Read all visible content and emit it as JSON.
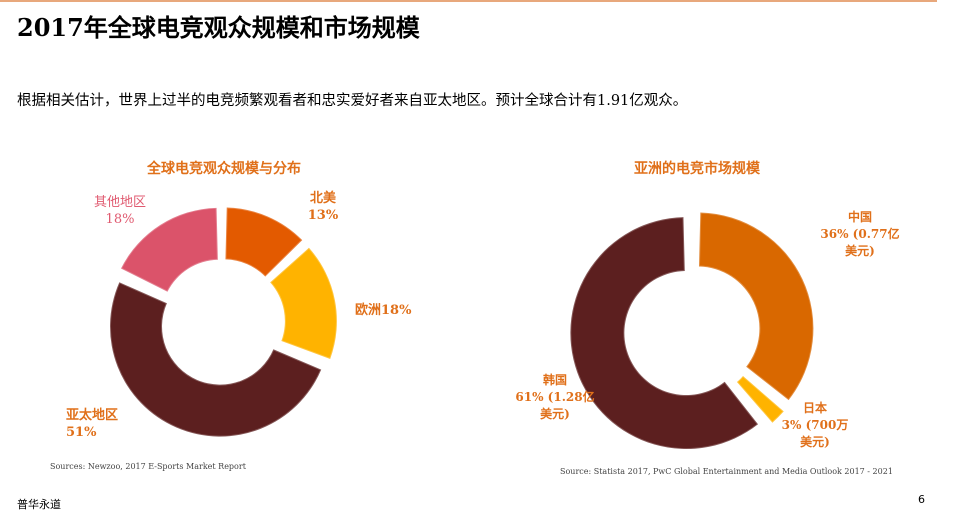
{
  "title": "2017年全球电竞观众规模和市场规模",
  "intro": "根据相关估计，世界上过半的电竞频繁观看者和忠实爱好者来自亚太地区。预计全球合计有1.91亿观众。",
  "footer": "普华永道",
  "page_number": "6",
  "label_color": "#e0701a",
  "chart_data": [
    {
      "type": "pie",
      "variant": "donut",
      "title": "全球电竞观众规模与分布",
      "source": "Sources: Newzoo, 2017 E-Sports Market Report",
      "slices": [
        {
          "name": "北美",
          "value": 13,
          "label": "13%",
          "color": "#e35a00"
        },
        {
          "name": "欧洲",
          "value": 18,
          "label": "18%",
          "color": "#ffb300"
        },
        {
          "name": "亚太地区",
          "value": 51,
          "label": "51%",
          "color": "#5c1f1f"
        },
        {
          "name": "其他地区",
          "value": 18,
          "label": "18%",
          "color": "#db536a"
        }
      ]
    },
    {
      "type": "pie",
      "variant": "donut",
      "title": "亚洲的电竞市场规模",
      "source": "Source: Statista 2017, PwC Global Entertainment and Media Outlook 2017 - 2021",
      "slices": [
        {
          "name": "中国",
          "value": 36,
          "label": "36% (0.77亿",
          "label2": "美元)",
          "color": "#d96800"
        },
        {
          "name": "日本",
          "value": 3,
          "label": "3% (700万",
          "label2": "美元)",
          "color": "#ffb300"
        },
        {
          "name": "韩国",
          "value": 61,
          "label": "61% (1.28亿",
          "label2": "美元)",
          "color": "#5c1f1f"
        }
      ]
    }
  ]
}
